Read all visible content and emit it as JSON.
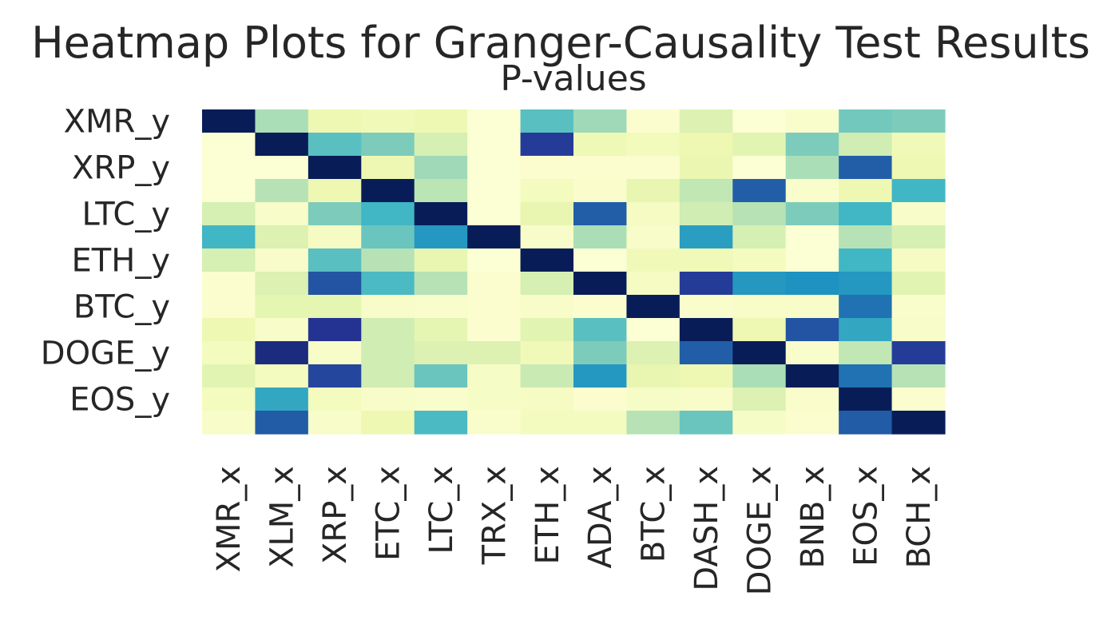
{
  "chart_data": {
    "type": "heatmap",
    "title": "Heatmap Plots for Granger-Causality Test Results",
    "subtitle": "P-values",
    "xlabel": "",
    "ylabel": "",
    "colormap": "YlGnBu",
    "value_range": [
      0,
      1
    ],
    "colorbar": false,
    "grid": false,
    "x_tick_labels": [
      "XMR_x",
      "XLM_x",
      "XRP_x",
      "ETC_x",
      "LTC_x",
      "TRX_x",
      "ETH_x",
      "ADA_x",
      "BTC_x",
      "DASH_x",
      "DOGE_x",
      "BNB_x",
      "EOS_x",
      "BCH_x"
    ],
    "y_tick_labels": [
      "XMR_y",
      "",
      "XRP_y",
      "",
      "LTC_y",
      "",
      "ETH_y",
      "",
      "BTC_y",
      "",
      "DOGE_y",
      "",
      "EOS_y",
      ""
    ],
    "values": [
      [
        0.0,
        0.7,
        0.88,
        0.9,
        0.88,
        0.98,
        0.55,
        0.68,
        0.97,
        0.82,
        0.98,
        0.96,
        0.6,
        0.62
      ],
      [
        0.98,
        0.0,
        0.55,
        0.62,
        0.8,
        0.98,
        0.15,
        0.89,
        0.91,
        0.88,
        0.84,
        0.62,
        0.78,
        0.9
      ],
      [
        0.98,
        0.98,
        0.0,
        0.88,
        0.68,
        0.98,
        0.97,
        0.97,
        0.97,
        0.87,
        0.98,
        0.7,
        0.25,
        0.88
      ],
      [
        0.98,
        0.72,
        0.88,
        0.0,
        0.73,
        0.98,
        0.92,
        0.96,
        0.86,
        0.74,
        0.25,
        0.96,
        0.88,
        0.5
      ],
      [
        0.8,
        0.95,
        0.62,
        0.5,
        0.0,
        0.98,
        0.86,
        0.25,
        0.93,
        0.78,
        0.72,
        0.62,
        0.5,
        0.95
      ],
      [
        0.5,
        0.82,
        0.93,
        0.58,
        0.4,
        0.0,
        0.95,
        0.7,
        0.95,
        0.42,
        0.8,
        0.98,
        0.72,
        0.8
      ],
      [
        0.8,
        0.95,
        0.55,
        0.72,
        0.86,
        0.98,
        0.0,
        0.98,
        0.9,
        0.9,
        0.92,
        0.98,
        0.5,
        0.93
      ],
      [
        0.97,
        0.82,
        0.22,
        0.52,
        0.72,
        0.97,
        0.8,
        0.0,
        0.93,
        0.15,
        0.4,
        0.38,
        0.4,
        0.84
      ],
      [
        0.97,
        0.85,
        0.85,
        0.95,
        0.96,
        0.97,
        0.95,
        0.97,
        0.0,
        0.96,
        0.95,
        0.95,
        0.3,
        0.96
      ],
      [
        0.88,
        0.95,
        0.12,
        0.78,
        0.85,
        0.97,
        0.84,
        0.55,
        0.98,
        0.0,
        0.88,
        0.22,
        0.45,
        0.95
      ],
      [
        0.92,
        0.08,
        0.95,
        0.78,
        0.82,
        0.82,
        0.9,
        0.62,
        0.82,
        0.25,
        0.0,
        0.96,
        0.74,
        0.15
      ],
      [
        0.84,
        0.92,
        0.18,
        0.78,
        0.58,
        0.94,
        0.76,
        0.4,
        0.86,
        0.88,
        0.7,
        0.0,
        0.3,
        0.72
      ],
      [
        0.92,
        0.45,
        0.92,
        0.95,
        0.96,
        0.94,
        0.93,
        0.97,
        0.94,
        0.95,
        0.82,
        0.96,
        0.0,
        0.97
      ],
      [
        0.95,
        0.24,
        0.95,
        0.88,
        0.52,
        0.96,
        0.92,
        0.92,
        0.72,
        0.58,
        0.94,
        0.97,
        0.24,
        0.0
      ]
    ]
  }
}
